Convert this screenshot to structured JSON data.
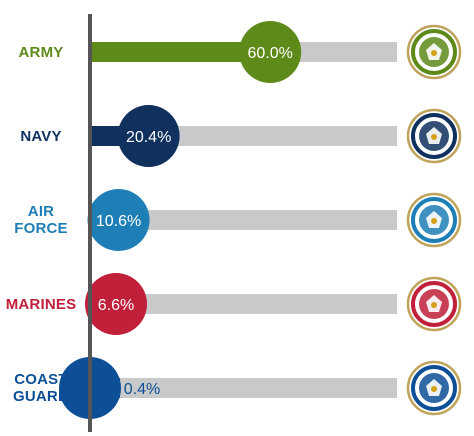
{
  "chart_data": {
    "type": "bar",
    "orientation": "horizontal",
    "value_suffix": "%",
    "xlim": [
      0,
      100
    ],
    "grid": false,
    "legend": "none",
    "categories": [
      "ARMY",
      "NAVY",
      "AIR FORCE",
      "MARINES",
      "COAST GUARD"
    ],
    "label_lines": [
      [
        "ARMY"
      ],
      [
        "NAVY"
      ],
      [
        "AIR",
        "FORCE"
      ],
      [
        "MARINES"
      ],
      [
        "COAST",
        "GUARD"
      ]
    ],
    "values": [
      60.0,
      20.4,
      10.6,
      6.6,
      0.4
    ],
    "value_labels": [
      "60.0%",
      "20.4%",
      "10.6%",
      "6.6%",
      "0.4%"
    ],
    "colors": [
      "#5e8a1a",
      "#10305e",
      "#1d7fb5",
      "#c0203a",
      "#0c4f96"
    ],
    "track_color": "#c8c9cb",
    "axis_color": "#555555",
    "seal_icons": [
      "army-seal-icon",
      "navy-seal-icon",
      "air-force-seal-icon",
      "marines-seal-icon",
      "coast-guard-seal-icon"
    ]
  }
}
